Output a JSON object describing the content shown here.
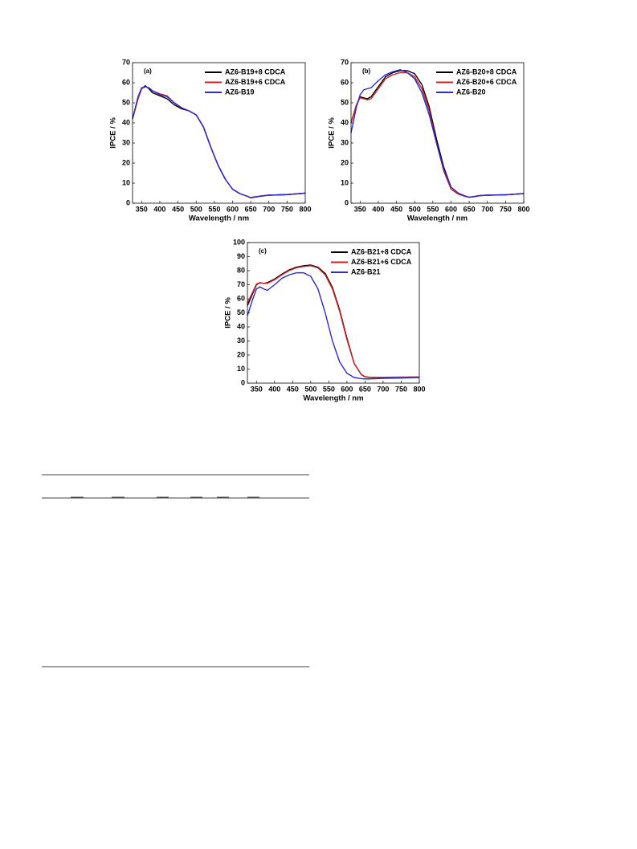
{
  "chart_data": [
    {
      "type": "line",
      "panel": "(a)",
      "x_label": "Wavelength / nm",
      "y_label": "IPCE / %",
      "x": [
        325,
        340,
        350,
        360,
        370,
        380,
        400,
        420,
        440,
        460,
        480,
        500,
        520,
        540,
        560,
        580,
        600,
        620,
        640,
        650,
        660,
        680,
        700,
        750,
        800
      ],
      "xlim": [
        325,
        800
      ],
      "xticks": [
        350,
        400,
        450,
        500,
        550,
        600,
        650,
        700,
        750,
        800
      ],
      "ylim": [
        0,
        70
      ],
      "yticks": [
        0,
        10,
        20,
        30,
        40,
        50,
        60,
        70
      ],
      "series": [
        {
          "name": "AZ6-B19+8 CDCA",
          "color": "#000000",
          "values": [
            42,
            52,
            57,
            58.5,
            57,
            55,
            53.5,
            52,
            49,
            47,
            46,
            44,
            38,
            28,
            19,
            12,
            7,
            4.8,
            3.5,
            2.7,
            3,
            3.6,
            4,
            4.3,
            5
          ]
        },
        {
          "name": "AZ6-B19+6 CDCA",
          "color": "#d42020",
          "values": [
            42,
            52,
            57,
            58,
            57.5,
            56,
            54.5,
            53.5,
            50,
            47.5,
            46,
            44,
            38,
            28,
            19,
            12,
            7,
            4.8,
            3.5,
            2.7,
            3,
            3.6,
            4,
            4.3,
            5
          ]
        },
        {
          "name": "AZ6-B19",
          "color": "#2a2ad0",
          "values": [
            42,
            53,
            57.5,
            58,
            57.5,
            56,
            54,
            53,
            50,
            47.5,
            46,
            44,
            38,
            28,
            19,
            12,
            7,
            4.8,
            3.5,
            2.8,
            3.1,
            3.6,
            4,
            4.3,
            5
          ]
        }
      ]
    },
    {
      "type": "line",
      "panel": "(b)",
      "x_label": "Wavelength / nm",
      "y_label": "IPCE / %",
      "x": [
        325,
        340,
        350,
        360,
        370,
        380,
        400,
        420,
        440,
        460,
        480,
        500,
        520,
        540,
        560,
        580,
        600,
        620,
        640,
        650,
        660,
        680,
        700,
        750,
        800
      ],
      "xlim": [
        325,
        800
      ],
      "xticks": [
        350,
        400,
        450,
        500,
        550,
        600,
        650,
        700,
        750,
        800
      ],
      "ylim": [
        0,
        70
      ],
      "yticks": [
        0,
        10,
        20,
        30,
        40,
        50,
        60,
        70
      ],
      "series": [
        {
          "name": "AZ6-B20+8 CDCA",
          "color": "#000000",
          "values": [
            40,
            49,
            53,
            52.5,
            52,
            53,
            58,
            63,
            65,
            66,
            66,
            64.5,
            59,
            48,
            32,
            18,
            8,
            5,
            3.5,
            3,
            3.2,
            3.8,
            4,
            4.2,
            4.8
          ]
        },
        {
          "name": "AZ6-B20+6 CDCA",
          "color": "#d42020",
          "values": [
            40,
            49,
            52.5,
            52,
            51.5,
            52,
            57,
            62,
            64,
            65,
            65,
            63,
            57,
            46,
            30,
            16,
            7,
            4.5,
            3.3,
            3,
            3.2,
            3.8,
            4,
            4.2,
            4.8
          ]
        },
        {
          "name": "AZ6-B20",
          "color": "#2a2ad0",
          "values": [
            35,
            48,
            54,
            56.5,
            57,
            57.5,
            61,
            64,
            65.5,
            66.5,
            65,
            62,
            55,
            44,
            30,
            17,
            8,
            5,
            3.5,
            3,
            3.2,
            3.8,
            4,
            4.2,
            4.8
          ]
        }
      ]
    },
    {
      "type": "line",
      "panel": "(c)",
      "x_label": "Wavelength / nm",
      "y_label": "IPCE / %",
      "x": [
        325,
        340,
        350,
        360,
        370,
        380,
        400,
        420,
        440,
        460,
        480,
        500,
        520,
        540,
        560,
        580,
        600,
        620,
        640,
        650,
        660,
        680,
        700,
        750,
        800
      ],
      "xlim": [
        325,
        800
      ],
      "xticks": [
        350,
        400,
        450,
        500,
        550,
        600,
        650,
        700,
        750,
        800
      ],
      "ylim": [
        0,
        100
      ],
      "yticks": [
        0,
        10,
        20,
        30,
        40,
        50,
        60,
        70,
        80,
        90,
        100
      ],
      "series": [
        {
          "name": "AZ6-B21+8 CDCA",
          "color": "#000000",
          "values": [
            55,
            64,
            70,
            71.5,
            71,
            71.5,
            74,
            77.5,
            80.5,
            82.5,
            83.5,
            84,
            82.5,
            78,
            68,
            52,
            32,
            14,
            6,
            4.5,
            4.2,
            4,
            4.1,
            4.2,
            4.3
          ]
        },
        {
          "name": "AZ6-B21+6 CDCA",
          "color": "#d42020",
          "values": [
            57,
            65,
            70.5,
            71.5,
            71,
            71,
            73.5,
            77,
            80,
            82,
            83,
            83.5,
            82,
            77,
            67,
            51,
            31,
            14,
            6,
            4.6,
            4.3,
            4.1,
            4.2,
            4.3,
            4.4
          ]
        },
        {
          "name": "AZ6-B21",
          "color": "#2a2ad0",
          "values": [
            48,
            60,
            67,
            68.5,
            67,
            66,
            70,
            74.5,
            77,
            78.5,
            78.5,
            76,
            67,
            50,
            30,
            15,
            7,
            4,
            3.2,
            3,
            3,
            3.2,
            3.4,
            3.6,
            4
          ]
        }
      ]
    }
  ]
}
